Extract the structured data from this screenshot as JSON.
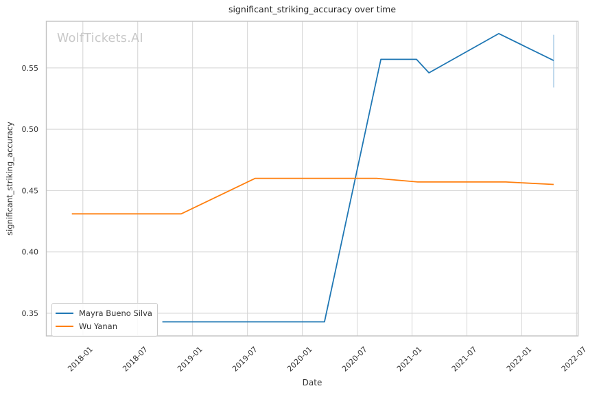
{
  "figure": {
    "title": "significant_striking_accuracy over time",
    "watermark": "WolfTickets.AI"
  },
  "chart_data": {
    "type": "line",
    "title": "significant_striking_accuracy over time",
    "xlabel": "Date",
    "ylabel": "significant_striking_accuracy",
    "grid": true,
    "legend_position": "lower left",
    "x_ticks": [
      "2018-01",
      "2018-07",
      "2019-01",
      "2019-07",
      "2020-01",
      "2020-07",
      "2021-01",
      "2021-07",
      "2022-01",
      "2022-07"
    ],
    "y_ticks": [
      0.35,
      0.4,
      0.45,
      0.5,
      0.55
    ],
    "x_range": [
      "2017-09-01",
      "2022-07-06"
    ],
    "y_range": [
      0.3315,
      0.588
    ],
    "grid_color": "#d4d4d4",
    "spine_color": "#c2c2c2",
    "series": [
      {
        "name": "Mayra Bueno Silva",
        "color": "#1f77b4",
        "points": [
          {
            "date": "2018-09-22",
            "value": 0.343
          },
          {
            "date": "2020-03-14",
            "value": 0.343
          },
          {
            "date": "2020-09-19",
            "value": 0.557
          },
          {
            "date": "2021-01-16",
            "value": 0.557
          },
          {
            "date": "2021-02-27",
            "value": 0.546
          },
          {
            "date": "2021-10-16",
            "value": 0.578
          },
          {
            "date": "2022-04-16",
            "value": 0.556
          }
        ]
      },
      {
        "name": "Wu Yanan",
        "color": "#ff7f0e",
        "points": [
          {
            "date": "2017-11-25",
            "value": 0.431
          },
          {
            "date": "2018-11-24",
            "value": 0.431
          },
          {
            "date": "2019-07-27",
            "value": 0.46
          },
          {
            "date": "2020-09-05",
            "value": 0.46
          },
          {
            "date": "2021-01-20",
            "value": 0.457
          },
          {
            "date": "2021-11-09",
            "value": 0.457
          },
          {
            "date": "2022-04-16",
            "value": 0.455
          }
        ]
      }
    ],
    "error_bars": [
      {
        "series": "Mayra Bueno Silva",
        "date": "2022-04-16",
        "low": 0.534,
        "high": 0.577,
        "color": "#b7d4ea"
      }
    ]
  }
}
